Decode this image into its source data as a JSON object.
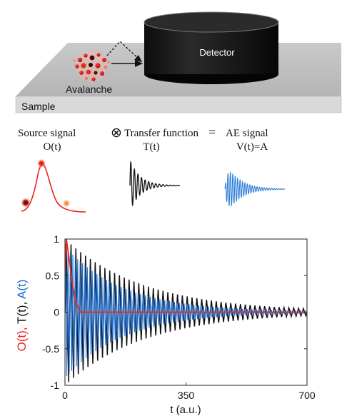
{
  "schematic": {
    "detector_label": "Detector",
    "source_label": "Avalanche",
    "sample_label": "Sample"
  },
  "equation": {
    "source_title": "Source signal",
    "source_symbol": "O(t)",
    "convolution_symbol": "⊗",
    "transfer_title": "Transfer function",
    "transfer_symbol": "T(t)",
    "equals_symbol": "=",
    "output_title": "AE signal",
    "output_symbol": "V(t)=A"
  },
  "colors": {
    "source": "#e8261f",
    "transfer": "#111111",
    "output": "#1f6fd0"
  },
  "chart_data": {
    "type": "line",
    "xlabel": "t (a.u.)",
    "ylabel_parts": [
      {
        "text": "O(t), ",
        "color": "#e8261f"
      },
      {
        "text": "T(t), ",
        "color": "#111111"
      },
      {
        "text": "A(t)",
        "color": "#1f6fd0"
      }
    ],
    "xlim": [
      0,
      700
    ],
    "ylim": [
      -1,
      1
    ],
    "xticks": [
      "0",
      "350",
      "700"
    ],
    "yticks": [
      "1",
      "0.5",
      "0",
      "-0.5",
      "-1"
    ],
    "series": [
      {
        "key": "T",
        "color": "#111111",
        "model": "damped-oscillation",
        "period": 14,
        "decay_time": 230,
        "amplitude": 1
      },
      {
        "key": "A",
        "color": "#1f6fd0",
        "model": "damped-oscillation",
        "period": 7,
        "decay_time": 170,
        "amplitude": 0.9
      },
      {
        "key": "O",
        "color": "#e8261f",
        "model": "pulse",
        "peak": 1,
        "peak_t": 4,
        "end_t": 45,
        "points": [
          [
            0,
            0.55
          ],
          [
            4,
            1
          ],
          [
            10,
            0.8
          ],
          [
            20,
            0.45
          ],
          [
            30,
            0.15
          ],
          [
            45,
            0
          ],
          [
            700,
            0
          ]
        ]
      }
    ]
  }
}
